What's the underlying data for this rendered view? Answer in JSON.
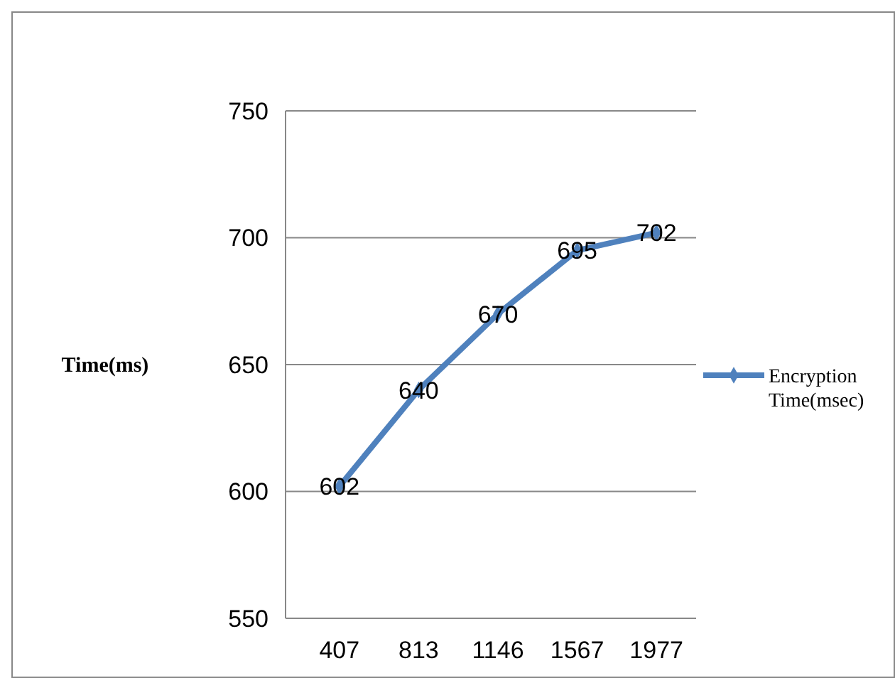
{
  "chart_data": {
    "type": "line",
    "ylabel": "Time(ms)",
    "categories": [
      "407",
      "813",
      "1146",
      "1567",
      "1977"
    ],
    "series": [
      {
        "name": "Encryption Time(msec)",
        "color": "#4f81bd",
        "values": [
          602,
          640,
          670,
          695,
          702
        ]
      }
    ],
    "ylim": [
      550,
      750
    ],
    "yticks": [
      550,
      600,
      650,
      700,
      750
    ],
    "grid": "y",
    "legend": "right",
    "marker": "diamond",
    "data_labels": true
  }
}
